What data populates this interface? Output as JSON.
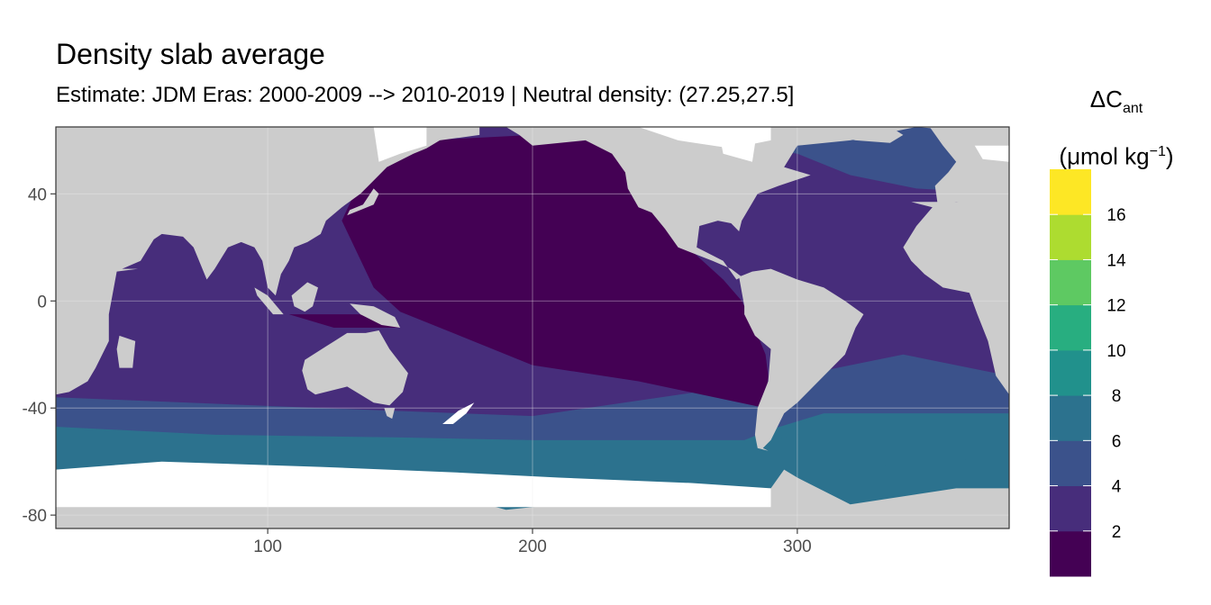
{
  "chart_data": {
    "type": "heatmap",
    "title": "Density slab average",
    "subtitle": "Estimate: JDM Eras: 2000-2009 --> 2010-2019 | Neutral density: (27.25,27.5]",
    "xlabel": "",
    "ylabel": "",
    "xlim": [
      20,
      380
    ],
    "ylim": [
      -85,
      65
    ],
    "x_ticks": [
      100,
      200,
      300
    ],
    "y_ticks": [
      40,
      0,
      -40,
      -80
    ],
    "grid": true,
    "legend": {
      "title_main": "ΔC",
      "title_sub": "ant",
      "unit_open": "(μmol kg",
      "unit_sup": "−1",
      "unit_close": ")",
      "position": "right",
      "bins": [
        {
          "from": 0,
          "to": 2,
          "color": "#440154"
        },
        {
          "from": 2,
          "to": 4,
          "color": "#472d7b"
        },
        {
          "from": 4,
          "to": 6,
          "color": "#3b528b"
        },
        {
          "from": 6,
          "to": 8,
          "color": "#2c728e"
        },
        {
          "from": 8,
          "to": 10,
          "color": "#21918c"
        },
        {
          "from": 10,
          "to": 12,
          "color": "#28ae80"
        },
        {
          "from": 12,
          "to": 14,
          "color": "#5ec962"
        },
        {
          "from": 14,
          "to": 16,
          "color": "#addc30"
        },
        {
          "from": 16,
          "to": 18,
          "color": "#fde725"
        }
      ],
      "tick_labels": [
        "2",
        "4",
        "6",
        "8",
        "10",
        "12",
        "14",
        "16"
      ]
    },
    "colors": {
      "land": "#cccccc",
      "no_data": "#ffffff",
      "panel_border": "#333333",
      "grid": "#ebebeb"
    },
    "regions_by_bin": [
      {
        "region": "Central/North Pacific",
        "value_bin": "0-2"
      },
      {
        "region": "Atlantic subtropics and Indian Ocean",
        "value_bin": "2-4"
      },
      {
        "region": "Subpolar North Atlantic and southern Indian Ocean",
        "value_bin": "4-6"
      },
      {
        "region": "Southern Ocean band",
        "value_bin": "6-8"
      }
    ]
  }
}
